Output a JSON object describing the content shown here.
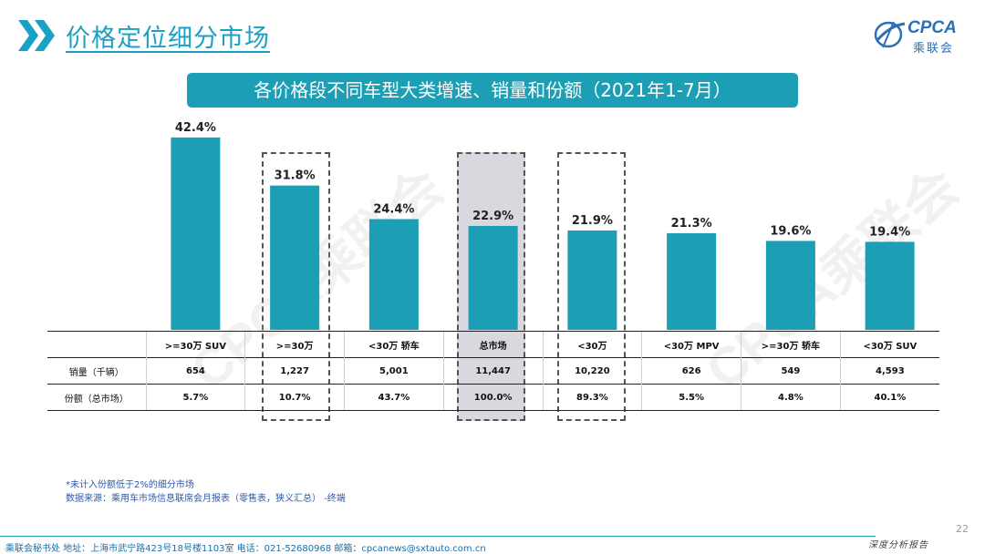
{
  "header": {
    "title": "价格定位细分市场",
    "logo_en": "CPCA",
    "logo_cn": "乘联会"
  },
  "banner": "各价格段不同车型大类增速、销量和份额（2021年1-7月）",
  "watermark": "CPCA乘联会",
  "chart_data": {
    "type": "bar",
    "categories": [
      ">=30万 SUV",
      ">=30万",
      "<30万 轿车",
      "总市场",
      "<30万",
      "<30万 MPV",
      ">=30万 轿车",
      "<30万 SUV"
    ],
    "values": [
      42.4,
      31.8,
      24.4,
      22.9,
      21.9,
      21.3,
      19.6,
      19.4
    ],
    "data_labels": [
      "42.4%",
      "31.8%",
      "24.4%",
      "22.9%",
      "21.9%",
      "21.3%",
      "19.6%",
      "19.4%"
    ],
    "bar_color": "#1c9fb5",
    "highlighted": [
      ">=30万",
      "总市场",
      "<30万"
    ],
    "highlight_fill": "#d8d8de",
    "ylim": [
      0,
      50
    ],
    "grid": false
  },
  "table": {
    "header_cells": [
      "",
      ">=30万 SUV",
      ">=30万",
      "<30万 轿车",
      "总市场",
      "<30万",
      "<30万 MPV",
      ">=30万 轿车",
      "<30万 SUV"
    ],
    "rows": [
      {
        "label": "销量（千辆）",
        "cells": [
          "654",
          "1,227",
          "5,001",
          "11,447",
          "10,220",
          "626",
          "549",
          "4,593"
        ]
      },
      {
        "label": "份额（总市场）",
        "cells": [
          "5.7%",
          "10.7%",
          "43.7%",
          "100.0%",
          "89.3%",
          "5.5%",
          "4.8%",
          "40.1%"
        ]
      }
    ]
  },
  "notes": {
    "line1": "*未计入份额低于2%的细分市场",
    "line2": "数据来源：乘用车市场信息联席会月报表（零售表，狭义汇总）  -终端"
  },
  "footer": {
    "left": "乘联会秘书处   地址：上海市武宁路423号18号楼1103室   电话：021-52680968   邮箱：cpcanews@sxtauto.com.cn",
    "right": "深度分析报告",
    "page_number": "22"
  }
}
